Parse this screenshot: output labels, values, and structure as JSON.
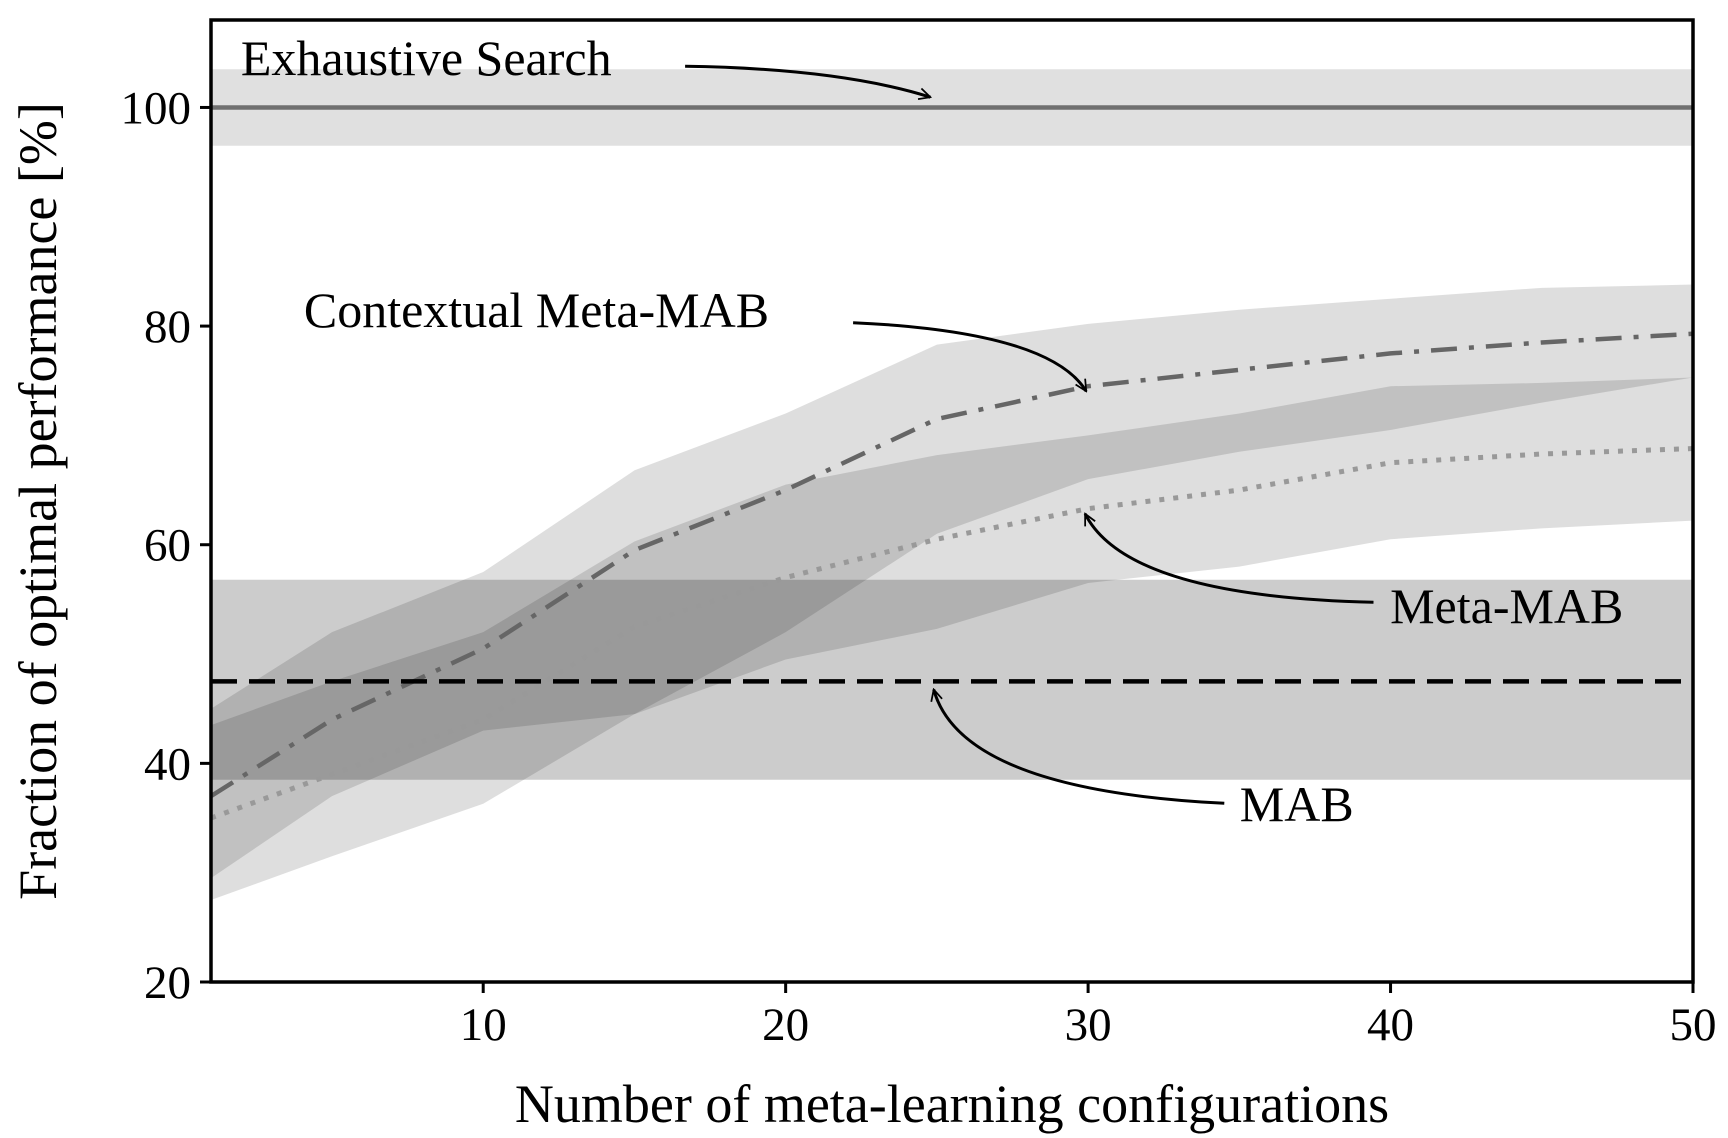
{
  "chart_data": {
    "type": "line",
    "xlabel": "Number of meta-learning configurations",
    "ylabel": "Fraction of optimal performance [%]",
    "xlim": [
      1,
      50
    ],
    "ylim": [
      20,
      108
    ],
    "xticks": [
      10,
      20,
      30,
      40,
      50
    ],
    "yticks": [
      20,
      40,
      60,
      80,
      100
    ],
    "series": [
      {
        "name": "Exhaustive Search",
        "color": "#707070",
        "linestyle": "solid",
        "band_color": "rgba(0,0,0,0.12)",
        "x": [
          1,
          50
        ],
        "values": [
          100,
          100
        ],
        "lower": [
          96.5,
          96.5
        ],
        "upper": [
          103.5,
          103.5
        ]
      },
      {
        "name": "Contextual Meta-MAB",
        "color": "#666666",
        "linestyle": "dashdot",
        "band_color": "rgba(0,0,0,0.13)",
        "x": [
          1,
          5,
          10,
          15,
          20,
          25,
          30,
          35,
          40,
          45,
          50
        ],
        "values": [
          37,
          44,
          50.5,
          59.5,
          65,
          71.5,
          74.5,
          76,
          77.5,
          78.5,
          79.3
        ],
        "lower": [
          27.5,
          31.5,
          36.3,
          44.5,
          52,
          61,
          66,
          68.5,
          70.5,
          73,
          75.3
        ],
        "upper": [
          45,
          52,
          57.5,
          66.8,
          72,
          78.3,
          80.2,
          81.5,
          82.5,
          83.5,
          83.8
        ]
      },
      {
        "name": "Meta-MAB",
        "color": "#999999",
        "linestyle": "dotted",
        "band_color": "rgba(0,0,0,0.13)",
        "x": [
          1,
          5,
          10,
          15,
          20,
          25,
          30,
          35,
          40,
          45,
          50
        ],
        "values": [
          35,
          39,
          44,
          52.5,
          57,
          60.5,
          63.3,
          65,
          67.5,
          68.3,
          68.8
        ],
        "lower": [
          29.5,
          37,
          43,
          44.5,
          49.5,
          52.3,
          56.5,
          58,
          60.5,
          61.5,
          62.2
        ],
        "upper": [
          43.5,
          47.5,
          52,
          60.3,
          65.5,
          68.2,
          70,
          72,
          74.5,
          74.8,
          75.3
        ]
      },
      {
        "name": "MAB",
        "color": "#000000",
        "linestyle": "dashed",
        "band_color": "rgba(0,0,0,0.2)",
        "x": [
          1,
          50
        ],
        "values": [
          47.5,
          47.5
        ],
        "lower": [
          38.5,
          38.5
        ],
        "upper": [
          56.8,
          56.8
        ]
      }
    ]
  }
}
